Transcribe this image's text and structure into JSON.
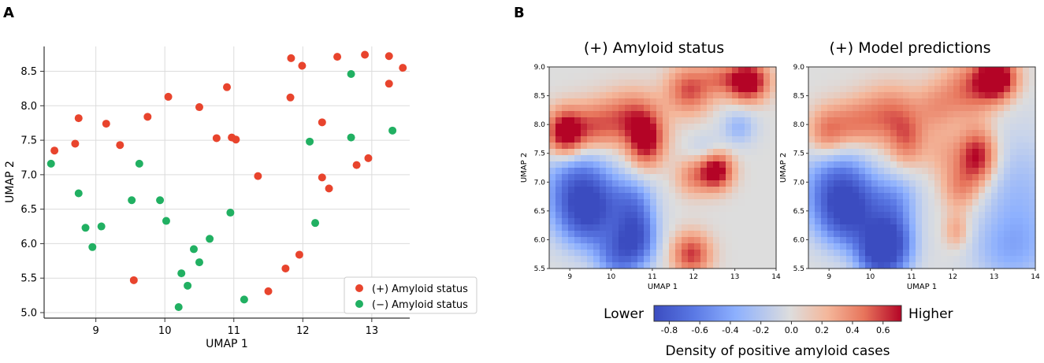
{
  "panel_a": {
    "label": "A",
    "chart_data": {
      "type": "scatter",
      "xlabel": "UMAP 1",
      "ylabel": "UMAP 2",
      "xlim": [
        8.25,
        13.55
      ],
      "ylim": [
        4.92,
        8.86
      ],
      "xticks": [
        9,
        10,
        11,
        12,
        13
      ],
      "yticks": [
        5.0,
        5.5,
        6.0,
        6.5,
        7.0,
        7.5,
        8.0,
        8.5
      ],
      "xtick_labels": [
        "9",
        "10",
        "11",
        "12",
        "13"
      ],
      "ytick_labels": [
        "5.0",
        "5.5",
        "6.0",
        "6.5",
        "7.0",
        "7.5",
        "8.0",
        "8.5"
      ],
      "grid": true,
      "legend_position": "bottom-right",
      "series": [
        {
          "name": "(+) Amyloid status",
          "color": "#e8442d",
          "points": [
            [
              8.4,
              7.35
            ],
            [
              8.7,
              7.45
            ],
            [
              8.75,
              7.82
            ],
            [
              9.15,
              7.74
            ],
            [
              9.35,
              7.43
            ],
            [
              9.75,
              7.84
            ],
            [
              10.05,
              8.13
            ],
            [
              10.5,
              7.98
            ],
            [
              10.75,
              7.53
            ],
            [
              10.9,
              8.27
            ],
            [
              10.97,
              7.54
            ],
            [
              11.03,
              7.51
            ],
            [
              11.35,
              6.98
            ],
            [
              11.5,
              5.31
            ],
            [
              11.75,
              5.64
            ],
            [
              11.82,
              8.12
            ],
            [
              11.83,
              8.69
            ],
            [
              11.95,
              5.84
            ],
            [
              11.99,
              8.58
            ],
            [
              12.28,
              7.76
            ],
            [
              12.28,
              6.96
            ],
            [
              12.38,
              6.8
            ],
            [
              12.5,
              8.71
            ],
            [
              12.78,
              7.14
            ],
            [
              12.9,
              8.74
            ],
            [
              12.95,
              7.24
            ],
            [
              13.25,
              8.72
            ],
            [
              13.25,
              8.32
            ],
            [
              13.45,
              8.55
            ],
            [
              9.55,
              5.47
            ]
          ]
        },
        {
          "name": "(−) Amyloid status",
          "color": "#21b062",
          "points": [
            [
              8.35,
              7.16
            ],
            [
              8.75,
              6.73
            ],
            [
              8.85,
              6.23
            ],
            [
              8.95,
              5.95
            ],
            [
              9.08,
              6.25
            ],
            [
              9.52,
              6.63
            ],
            [
              9.63,
              7.16
            ],
            [
              9.93,
              6.63
            ],
            [
              10.02,
              6.33
            ],
            [
              10.2,
              5.08
            ],
            [
              10.24,
              5.57
            ],
            [
              10.33,
              5.39
            ],
            [
              10.42,
              5.92
            ],
            [
              10.5,
              5.73
            ],
            [
              10.65,
              6.07
            ],
            [
              10.95,
              6.45
            ],
            [
              11.15,
              5.19
            ],
            [
              12.1,
              7.48
            ],
            [
              12.18,
              6.3
            ],
            [
              12.7,
              7.54
            ],
            [
              12.7,
              8.46
            ],
            [
              13.3,
              7.64
            ]
          ]
        }
      ]
    }
  },
  "panel_b": {
    "label": "B",
    "chart_data": [
      {
        "type": "heatmap",
        "title": "(+) Amyloid status",
        "xlabel": "UMAP 1",
        "ylabel": "UMAP 2",
        "xlim": [
          8.5,
          14
        ],
        "ylim": [
          5.5,
          9.0
        ],
        "xtick_labels": [
          "9",
          "10",
          "11",
          "12",
          "13",
          "14"
        ],
        "ytick_labels": [
          "5.5",
          "6.0",
          "6.5",
          "7.0",
          "7.5",
          "8.0",
          "8.5",
          "9.0"
        ],
        "kernels": [
          {
            "x": 8.9,
            "y": 7.85,
            "w": 0.95,
            "sx": 0.32,
            "sy": 0.28
          },
          {
            "x": 9.6,
            "y": 7.95,
            "w": 0.45,
            "sx": 0.38,
            "sy": 0.3
          },
          {
            "x": 10.5,
            "y": 8.1,
            "w": 0.55,
            "sx": 0.48,
            "sy": 0.32
          },
          {
            "x": 10.85,
            "y": 7.7,
            "w": 0.7,
            "sx": 0.3,
            "sy": 0.3
          },
          {
            "x": 11.9,
            "y": 8.6,
            "w": 0.55,
            "sx": 0.38,
            "sy": 0.28
          },
          {
            "x": 12.6,
            "y": 8.8,
            "w": 0.3,
            "sx": 0.3,
            "sy": 0.2
          },
          {
            "x": 13.3,
            "y": 8.75,
            "w": 0.95,
            "sx": 0.34,
            "sy": 0.23
          },
          {
            "x": 12.0,
            "y": 7.1,
            "w": 0.35,
            "sx": 0.3,
            "sy": 0.23
          },
          {
            "x": 12.55,
            "y": 7.2,
            "w": 0.85,
            "sx": 0.27,
            "sy": 0.22
          },
          {
            "x": 11.95,
            "y": 5.75,
            "w": 0.6,
            "sx": 0.32,
            "sy": 0.25
          },
          {
            "x": 9.2,
            "y": 6.85,
            "w": -0.65,
            "sx": 0.6,
            "sy": 0.55
          },
          {
            "x": 9.5,
            "y": 6.45,
            "w": -0.55,
            "sx": 0.48,
            "sy": 0.42
          },
          {
            "x": 10.6,
            "y": 6.05,
            "w": -0.8,
            "sx": 0.35,
            "sy": 0.38
          },
          {
            "x": 10.1,
            "y": 5.7,
            "w": -0.45,
            "sx": 0.35,
            "sy": 0.32
          },
          {
            "x": 10.5,
            "y": 6.7,
            "w": -0.35,
            "sx": 0.4,
            "sy": 0.3
          },
          {
            "x": 13.1,
            "y": 7.95,
            "w": -0.3,
            "sx": 0.3,
            "sy": 0.22
          },
          {
            "x": 12.3,
            "y": 7.55,
            "w": -0.18,
            "sx": 0.3,
            "sy": 0.2
          }
        ]
      },
      {
        "type": "heatmap",
        "title": "(+) Model predictions",
        "xlabel": "UMAP 1",
        "ylabel": "UMAP 2",
        "xlim": [
          8.5,
          14
        ],
        "ylim": [
          5.5,
          9.0
        ],
        "xtick_labels": [
          "9",
          "10",
          "11",
          "12",
          "13",
          "14"
        ],
        "ytick_labels": [
          "5.5",
          "6.0",
          "6.5",
          "7.0",
          "7.5",
          "8.0",
          "8.5",
          "9.0"
        ],
        "kernels": [
          {
            "x": 8.95,
            "y": 7.85,
            "w": 0.45,
            "sx": 0.33,
            "sy": 0.3
          },
          {
            "x": 9.6,
            "y": 8.0,
            "w": 0.35,
            "sx": 0.4,
            "sy": 0.3
          },
          {
            "x": 10.5,
            "y": 8.15,
            "w": 0.45,
            "sx": 0.5,
            "sy": 0.35
          },
          {
            "x": 10.9,
            "y": 7.7,
            "w": 0.35,
            "sx": 0.3,
            "sy": 0.3
          },
          {
            "x": 12.4,
            "y": 8.6,
            "w": 0.45,
            "sx": 0.45,
            "sy": 0.35
          },
          {
            "x": 13.05,
            "y": 8.8,
            "w": 1.0,
            "sx": 0.33,
            "sy": 0.25
          },
          {
            "x": 12.6,
            "y": 7.45,
            "w": 0.75,
            "sx": 0.32,
            "sy": 0.32
          },
          {
            "x": 11.8,
            "y": 7.5,
            "w": 0.2,
            "sx": 0.35,
            "sy": 0.3
          },
          {
            "x": 12.2,
            "y": 6.9,
            "w": 0.35,
            "sx": 0.32,
            "sy": 0.28
          },
          {
            "x": 12.1,
            "y": 6.15,
            "w": 0.28,
            "sx": 0.22,
            "sy": 0.22
          },
          {
            "x": 11.6,
            "y": 8.3,
            "w": 0.25,
            "sx": 0.35,
            "sy": 0.3
          },
          {
            "x": 9.2,
            "y": 6.85,
            "w": -0.65,
            "sx": 0.6,
            "sy": 0.55
          },
          {
            "x": 9.5,
            "y": 6.45,
            "w": -0.55,
            "sx": 0.48,
            "sy": 0.42
          },
          {
            "x": 10.5,
            "y": 5.95,
            "w": -0.85,
            "sx": 0.4,
            "sy": 0.42
          },
          {
            "x": 10.1,
            "y": 5.75,
            "w": -0.5,
            "sx": 0.35,
            "sy": 0.32
          },
          {
            "x": 10.6,
            "y": 6.75,
            "w": -0.3,
            "sx": 0.45,
            "sy": 0.3
          },
          {
            "x": 13.6,
            "y": 6.6,
            "w": -0.3,
            "sx": 0.7,
            "sy": 0.9
          },
          {
            "x": 13.3,
            "y": 5.8,
            "w": -0.2,
            "sx": 0.7,
            "sy": 0.4
          }
        ]
      }
    ],
    "colorbar": {
      "low_label": "Lower",
      "high_label": "Higher",
      "title": "Density of positive amyloid cases",
      "range": [
        -0.9,
        0.72
      ],
      "ticks": [
        -0.8,
        -0.6,
        -0.4,
        -0.2,
        0.0,
        0.2,
        0.4,
        0.6
      ],
      "tick_labels": [
        "-0.8",
        "-0.6",
        "-0.4",
        "-0.2",
        "0.0",
        "0.2",
        "0.4",
        "0.6"
      ],
      "colors": {
        "low": "#3b4cc0",
        "mid": "#dddddd",
        "high": "#b40426"
      }
    }
  }
}
